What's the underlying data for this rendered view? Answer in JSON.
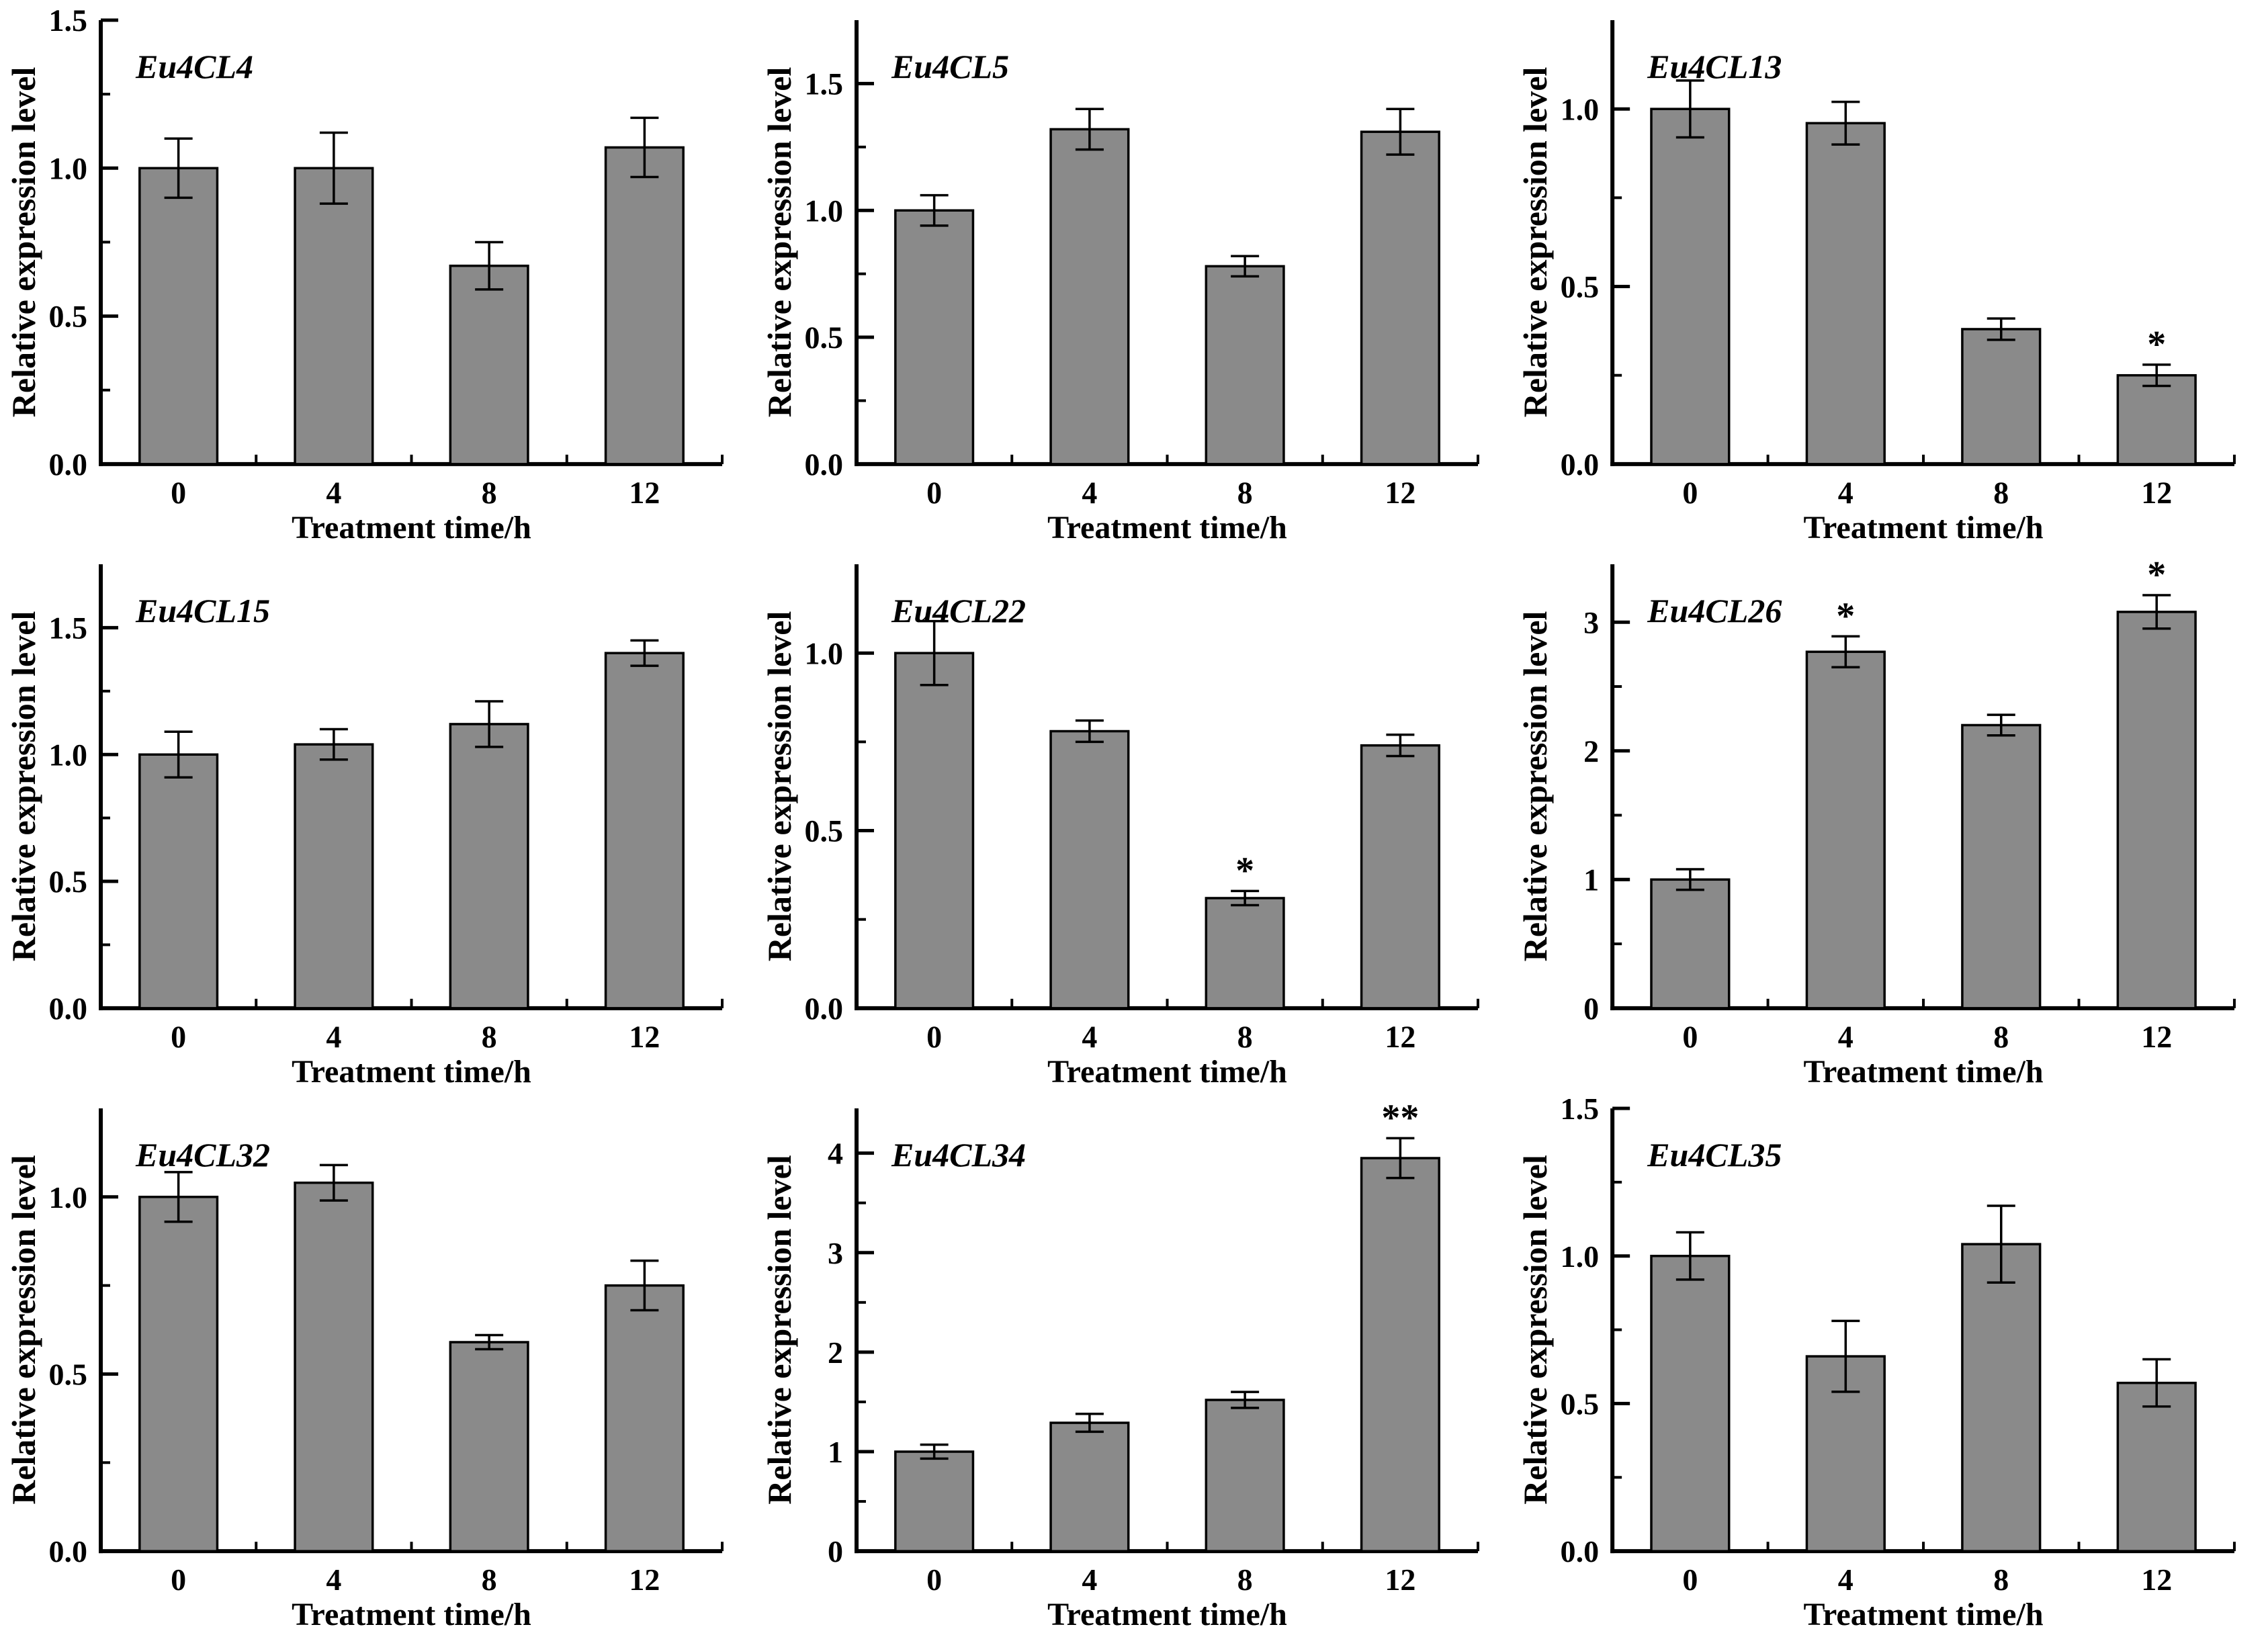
{
  "page": {
    "background": "#ffffff"
  },
  "colors": {
    "bar_fill": "#8a8a8a",
    "bar_border": "#000000",
    "axis": "#000000",
    "text": "#000000",
    "error_bar": "#000000"
  },
  "shared": {
    "ylabel": "Relative expression level",
    "xlabel": "Treatment time/h",
    "categories": [
      "0",
      "4",
      "8",
      "12"
    ]
  },
  "chart_data": [
    {
      "type": "bar",
      "title": "Eu4CL4",
      "xlabel": "Treatment time/h",
      "ylabel": "Relative expression level",
      "categories": [
        "0",
        "4",
        "8",
        "12"
      ],
      "values": [
        1.0,
        1.0,
        0.67,
        1.07
      ],
      "errors": [
        0.1,
        0.12,
        0.08,
        0.1
      ],
      "significance": [
        "",
        "",
        "",
        ""
      ],
      "ytick_values": [
        0.0,
        0.5,
        1.0,
        1.5
      ],
      "ytick_labels": [
        "0.0",
        "0.5",
        "1.0",
        "1.5"
      ],
      "ylim": [
        0,
        1.5
      ],
      "grid": "off",
      "legend": "none"
    },
    {
      "type": "bar",
      "title": "Eu4CL5",
      "xlabel": "Treatment time/h",
      "ylabel": "Relative expression level",
      "categories": [
        "0",
        "4",
        "8",
        "12"
      ],
      "values": [
        1.0,
        1.32,
        0.78,
        1.31
      ],
      "errors": [
        0.06,
        0.08,
        0.04,
        0.09
      ],
      "significance": [
        "",
        "",
        "",
        ""
      ],
      "ytick_values": [
        0.0,
        0.5,
        1.0,
        1.5
      ],
      "ytick_labels": [
        "0.0",
        "0.5",
        "1.0",
        "1.5"
      ],
      "ylim": [
        0,
        1.75
      ],
      "grid": "off",
      "legend": "none"
    },
    {
      "type": "bar",
      "title": "Eu4CL13",
      "xlabel": "Treatment time/h",
      "ylabel": "Relative expression level",
      "categories": [
        "0",
        "4",
        "8",
        "12"
      ],
      "values": [
        1.0,
        0.96,
        0.38,
        0.25
      ],
      "errors": [
        0.08,
        0.06,
        0.03,
        0.03
      ],
      "significance": [
        "",
        "",
        "",
        "*"
      ],
      "ytick_values": [
        0.0,
        0.5,
        1.0
      ],
      "ytick_labels": [
        "0.0",
        "0.5",
        "1.0"
      ],
      "ylim": [
        0,
        1.25
      ],
      "grid": "off",
      "legend": "none"
    },
    {
      "type": "bar",
      "title": "Eu4CL15",
      "xlabel": "Treatment time/h",
      "ylabel": "Relative expression level",
      "categories": [
        "0",
        "4",
        "8",
        "12"
      ],
      "values": [
        1.0,
        1.04,
        1.12,
        1.4
      ],
      "errors": [
        0.09,
        0.06,
        0.09,
        0.05
      ],
      "significance": [
        "",
        "",
        "",
        ""
      ],
      "ytick_values": [
        0.0,
        0.5,
        1.0,
        1.5
      ],
      "ytick_labels": [
        "0.0",
        "0.5",
        "1.0",
        "1.5"
      ],
      "ylim": [
        0,
        1.75
      ],
      "grid": "off",
      "legend": "none"
    },
    {
      "type": "bar",
      "title": "Eu4CL22",
      "xlabel": "Treatment time/h",
      "ylabel": "Relative expression level",
      "categories": [
        "0",
        "4",
        "8",
        "12"
      ],
      "values": [
        1.0,
        0.78,
        0.31,
        0.74
      ],
      "errors": [
        0.09,
        0.03,
        0.02,
        0.03
      ],
      "significance": [
        "",
        "",
        "*",
        ""
      ],
      "ytick_values": [
        0.0,
        0.5,
        1.0
      ],
      "ytick_labels": [
        "0.0",
        "0.5",
        "1.0"
      ],
      "ylim": [
        0,
        1.25
      ],
      "grid": "off",
      "legend": "none"
    },
    {
      "type": "bar",
      "title": "Eu4CL26",
      "xlabel": "Treatment time/h",
      "ylabel": "Relative expression level",
      "categories": [
        "0",
        "4",
        "8",
        "12"
      ],
      "values": [
        1.0,
        2.77,
        2.2,
        3.08
      ],
      "errors": [
        0.08,
        0.12,
        0.08,
        0.13
      ],
      "significance": [
        "",
        "*",
        "",
        "*"
      ],
      "ytick_values": [
        0,
        1,
        2,
        3
      ],
      "ytick_labels": [
        "0",
        "1",
        "2",
        "3"
      ],
      "ylim": [
        0,
        3.45
      ],
      "grid": "off",
      "legend": "none"
    },
    {
      "type": "bar",
      "title": "Eu4CL32",
      "xlabel": "Treatment time/h",
      "ylabel": "Relative expression level",
      "categories": [
        "0",
        "4",
        "8",
        "12"
      ],
      "values": [
        1.0,
        1.04,
        0.59,
        0.75
      ],
      "errors": [
        0.07,
        0.05,
        0.02,
        0.07
      ],
      "significance": [
        "",
        "",
        "",
        ""
      ],
      "ytick_values": [
        0.0,
        0.5,
        1.0
      ],
      "ytick_labels": [
        "0.0",
        "0.5",
        "1.0"
      ],
      "ylim": [
        0,
        1.25
      ],
      "grid": "off",
      "legend": "none"
    },
    {
      "type": "bar",
      "title": "Eu4CL34",
      "xlabel": "Treatment time/h",
      "ylabel": "Relative expression level",
      "categories": [
        "0",
        "4",
        "8",
        "12"
      ],
      "values": [
        1.0,
        1.29,
        1.52,
        3.95
      ],
      "errors": [
        0.07,
        0.09,
        0.08,
        0.2
      ],
      "significance": [
        "",
        "",
        "",
        "**"
      ],
      "ytick_values": [
        0,
        1,
        2,
        3,
        4
      ],
      "ytick_labels": [
        "0",
        "1",
        "2",
        "3",
        "4"
      ],
      "ylim": [
        0,
        4.45
      ],
      "grid": "off",
      "legend": "none"
    },
    {
      "type": "bar",
      "title": "Eu4CL35",
      "xlabel": "Treatment time/h",
      "ylabel": "Relative expression level",
      "categories": [
        "0",
        "4",
        "8",
        "12"
      ],
      "values": [
        1.0,
        0.66,
        1.04,
        0.57
      ],
      "errors": [
        0.08,
        0.12,
        0.13,
        0.08
      ],
      "significance": [
        "",
        "",
        "",
        ""
      ],
      "ytick_values": [
        0.0,
        0.5,
        1.0,
        1.5
      ],
      "ytick_labels": [
        "0.0",
        "0.5",
        "1.0",
        "1.5"
      ],
      "ylim": [
        0,
        1.5
      ],
      "grid": "off",
      "legend": "none"
    }
  ]
}
